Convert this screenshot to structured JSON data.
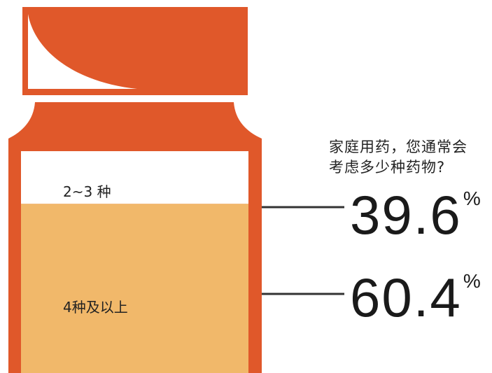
{
  "question": {
    "line1": "家庭用药，您通常会",
    "line2": "考虑多少种药物?"
  },
  "colors": {
    "jar": "#e0582a",
    "top_segment": "#ffffff",
    "bottom_segment": "#f1b86a",
    "leader_line": "#333333"
  },
  "chart_data": {
    "type": "bar",
    "categories": [
      "2~3 种",
      "4种及以上"
    ],
    "values": [
      39.6,
      60.4
    ],
    "value_labels": [
      "39.6",
      "60.4"
    ],
    "unit": "%",
    "stacked": true,
    "title": "",
    "xlabel": "",
    "ylabel": ""
  }
}
